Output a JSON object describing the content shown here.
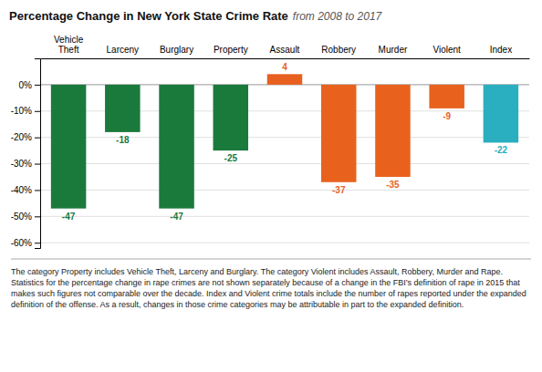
{
  "chart_data": {
    "type": "bar",
    "title": "Percentage Change in New York State Crime Rate",
    "subtitle": "from 2008 to 2017",
    "categories": [
      "Vehicle\nTheft",
      "Larceny",
      "Burglary",
      "Property",
      "Assault",
      "Robbery",
      "Murder",
      "Violent",
      "Index"
    ],
    "values": [
      -47,
      -18,
      -47,
      -25,
      4,
      -37,
      -35,
      -9,
      -22
    ],
    "colors": [
      "#1a7a3c",
      "#1a7a3c",
      "#1a7a3c",
      "#1a7a3c",
      "#e86020",
      "#e8621e",
      "#e8621e",
      "#e8621e",
      "#29afc0"
    ],
    "ylim": [
      -62,
      10
    ],
    "yticks": [
      {
        "value": 0,
        "label": "0%"
      },
      {
        "value": -10,
        "label": "-10%"
      },
      {
        "value": -20,
        "label": "-20%"
      },
      {
        "value": -30,
        "label": "-30%"
      },
      {
        "value": -40,
        "label": "-40%"
      },
      {
        "value": -50,
        "label": "-50%"
      },
      {
        "value": -60,
        "label": "-60%"
      }
    ],
    "grid": true,
    "data_labels": true,
    "annotations": [
      "The category Property includes Vehicle Theft, Larceny and Burglary. The category Violent includes Assault, Robbery, Murder and Rape. Statistics for the percentage change in rape crimes are not shown separately because of a change in the FBI’s definition of rape in 2015 that makes such figures not comparable over the decade. Index and Violent crime totals include the number of rapes reported under the expanded definition of the offense. As a result, changes in those crime categories may be attributable in part to the expanded definition."
    ]
  }
}
